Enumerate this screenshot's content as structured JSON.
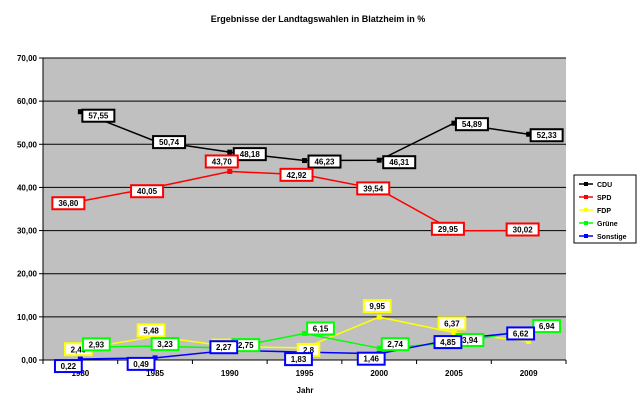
{
  "chart_data": {
    "type": "line",
    "title": "Ergebnisse der Landtagswahlen in Blatzheim in %",
    "xlabel": "Jahr",
    "ylabel": "",
    "categories": [
      "1980",
      "1985",
      "1990",
      "1995",
      "2000",
      "2005",
      "2009"
    ],
    "ylim": [
      0,
      70
    ],
    "y_ticks": [
      "0,00",
      "10,00",
      "20,00",
      "30,00",
      "40,00",
      "50,00",
      "60,00",
      "70,00"
    ],
    "grid": true,
    "legend_position": "right",
    "series": [
      {
        "name": "CDU",
        "color": "#000000",
        "label_border": "#000000",
        "label_bg": "#ffffff",
        "values": [
          57.55,
          50.74,
          48.18,
          46.23,
          46.31,
          54.89,
          52.33
        ],
        "labels": [
          "57,55",
          "50,74",
          "48,18",
          "46,23",
          "46,31",
          "54,89",
          "52,33"
        ]
      },
      {
        "name": "SPD",
        "color": "#ff0000",
        "label_border": "#ff0000",
        "label_bg": "#ffffff",
        "values": [
          36.8,
          40.05,
          43.7,
          42.92,
          39.54,
          29.95,
          30.02
        ],
        "labels": [
          "36,80",
          "40,05",
          "43,70",
          "42,92",
          "39,54",
          "29,95",
          "30,02"
        ]
      },
      {
        "name": "FDP",
        "color": "#ffff00",
        "label_border": "#ffff00",
        "label_bg": "#ffffff",
        "values": [
          2.49,
          5.48,
          3.1,
          2.8,
          9.95,
          6.37,
          4.3
        ],
        "labels": [
          "2,49",
          "5,48",
          "3,10",
          "2,8",
          "9,95",
          "6,37",
          ""
        ]
      },
      {
        "name": "Grüne",
        "color": "#00ff00",
        "label_border": "#00ff00",
        "label_bg": "#ffffff",
        "values": [
          2.93,
          3.23,
          2.75,
          6.15,
          2.74,
          3.94,
          6.94
        ],
        "labels": [
          "2,93",
          "3,23",
          "2,75",
          "6,15",
          "2,74",
          "3,94",
          "6,94"
        ]
      },
      {
        "name": "Sonstige",
        "color": "#0000ff",
        "label_border": "#0000ff",
        "label_bg": "#ffffff",
        "values": [
          0.22,
          0.49,
          2.27,
          1.83,
          1.46,
          4.85,
          6.62
        ],
        "labels": [
          "0,22",
          "0,49",
          "2,27",
          "1,83",
          "1,46",
          "4,85",
          "6,62"
        ]
      }
    ]
  }
}
